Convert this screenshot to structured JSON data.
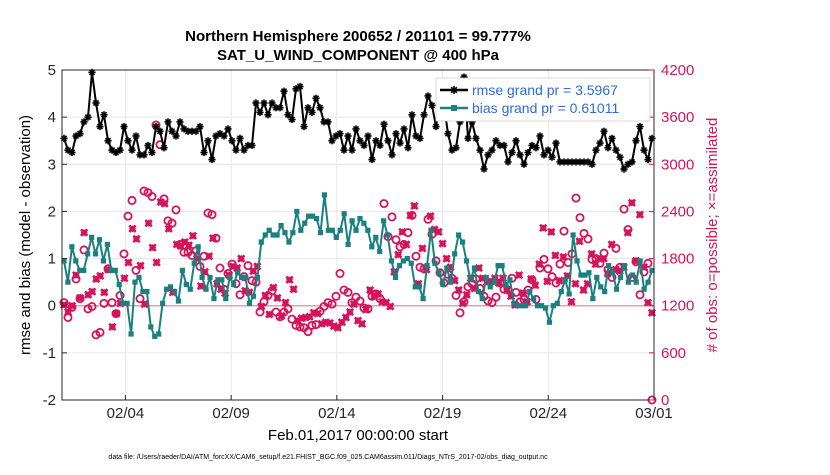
{
  "chart_data": {
    "type": "line",
    "title": "Northern Hemisphere 200652 / 201101 = 99.777%",
    "subtitle": "SAT_U_WIND_COMPONENT @ 400 hPa",
    "xlabel": "Feb.01,2017 00:00:00 start",
    "ylabel_left": "rmse and bias (model - observation)",
    "ylabel_right": "# of obs: o=possible; ×=assimilated",
    "footer": "data file: /Users/raeder/DAI/ATM_forcXX/CAM6_setup/f.e21.FHIST_BGC.f09_025.CAM6assim.011/Diags_NTrS_2017-02/obs_diag_output.nc",
    "x_start_date": "2017-02-01",
    "x_range_days": [
      0,
      28
    ],
    "x_tick_labels": [
      "02/04",
      "02/09",
      "02/14",
      "02/19",
      "02/24",
      "03/01"
    ],
    "ylim_left": [
      -2,
      5
    ],
    "y_ticks_left": [
      "-2",
      "-1",
      "0",
      "1",
      "2",
      "3",
      "4",
      "5"
    ],
    "ylim_right": [
      0,
      4200
    ],
    "y_ticks_right": [
      "0",
      "600",
      "1200",
      "1800",
      "2400",
      "3000",
      "3600",
      "4200"
    ],
    "grid": true,
    "legend_position": "top-right",
    "colors": {
      "rmse": "#000000",
      "bias": "#1a8080",
      "obs": "#d4145a",
      "legend_text": "#2f6bd8",
      "zero_line": "#e0a0b0",
      "grid": "#e6e6e6"
    },
    "series": [
      {
        "name": "rmse grand pr = 3.5967",
        "axis": "left",
        "marker": "star",
        "values": [
          3.55,
          3.3,
          3.25,
          3.6,
          3.65,
          3.9,
          4.0,
          4.95,
          4.3,
          3.8,
          4.05,
          3.5,
          3.3,
          3.25,
          3.3,
          3.8,
          3.5,
          3.3,
          3.6,
          3.2,
          3.2,
          3.4,
          3.25,
          3.8,
          3.7,
          3.35,
          3.9,
          3.7,
          3.6,
          3.9,
          3.75,
          3.7,
          3.7,
          3.7,
          3.8,
          3.25,
          3.5,
          3.1,
          3.6,
          3.65,
          3.6,
          3.75,
          3.5,
          3.3,
          3.55,
          3.3,
          3.4,
          3.4,
          4.3,
          4.1,
          4.3,
          4.05,
          4.3,
          4.2,
          4.2,
          4.55,
          4.05,
          3.95,
          4.6,
          4.65,
          3.8,
          4.2,
          4.1,
          4.4,
          4.2,
          3.9,
          3.9,
          3.5,
          3.6,
          3.65,
          3.3,
          3.6,
          3.3,
          3.75,
          3.5,
          3.4,
          3.6,
          3.1,
          3.5,
          3.4,
          3.85,
          3.5,
          3.2,
          3.65,
          3.45,
          3.75,
          3.35,
          4.05,
          3.6,
          3.55,
          4.05,
          4.45,
          4.25,
          3.8,
          4.4,
          4.25,
          3.65,
          3.3,
          3.35,
          3.9,
          4.85,
          3.55,
          3.9,
          3.55,
          3.3,
          2.9,
          3.2,
          3.3,
          3.5,
          3.4,
          3.4,
          3.05,
          3.25,
          3.5,
          3.2,
          3.0,
          3.25,
          3.4,
          3.35,
          3.6,
          3.2,
          3.3,
          3.15,
          3.45,
          3.05,
          3.05,
          3.05,
          3.05,
          3.05,
          3.05,
          3.05,
          3.05,
          3.0,
          3.3,
          3.45,
          3.7,
          3.35,
          3.55,
          3.3,
          3.15,
          2.9,
          3.0,
          3.05,
          3.5,
          3.8,
          3.3,
          3.1,
          3.55
        ]
      },
      {
        "name": "bias grand pr = 0.61011",
        "axis": "left",
        "marker": "square",
        "values": [
          0.95,
          0.5,
          1.25,
          0.95,
          0.75,
          0.75,
          1.1,
          1.45,
          1.1,
          1.4,
          0.95,
          1.3,
          0.75,
          0.75,
          0.45,
          0.05,
          0.05,
          -0.6,
          0.5,
          0.6,
          0.3,
          0.3,
          -0.45,
          -0.65,
          -0.6,
          0.05,
          0.35,
          0.4,
          0.3,
          0.1,
          0.75,
          0.45,
          0.35,
          0.9,
          1.25,
          0.6,
          0.35,
          0.6,
          0.15,
          0.55,
          0.55,
          0.15,
          0.6,
          0.45,
          0.7,
          0.6,
          0.6,
          0.05,
          0.2,
          0.6,
          1.35,
          1.5,
          1.6,
          1.5,
          1.5,
          1.7,
          1.55,
          1.35,
          1.55,
          2.0,
          1.6,
          1.75,
          1.9,
          1.9,
          1.85,
          1.55,
          2.35,
          1.6,
          1.6,
          1.45,
          1.6,
          1.95,
          1.3,
          1.8,
          1.6,
          1.85,
          1.75,
          1.6,
          1.25,
          1.45,
          1.15,
          1.8,
          1.5,
          0.95,
          0.6,
          0.85,
          0.95,
          1.0,
          0.9,
          0.4,
          0.4,
          0.15,
          0.85,
          1.6,
          0.9,
          0.7,
          0.45,
          0.8,
          0.5,
          1.1,
          1.5,
          1.35,
          0.95,
          0.55,
          0.8,
          0.3,
          0.15,
          0.6,
          0.4,
          0.5,
          0.85,
          0.85,
          0.45,
          0.55,
          0.05,
          0.0,
          0.0,
          0.0,
          0.3,
          0.15,
          0.0,
          0.0,
          -0.05,
          -0.35,
          0.0,
          0.05,
          0.3,
          0.55,
          0.25,
          1.5,
          0.95,
          0.65,
          0.65,
          0.7,
          0.15,
          0.6,
          0.4,
          0.3,
          0.85,
          0.7,
          0.35,
          0.6,
          0.85,
          0.5,
          0.65,
          0.5,
          0.95,
          0.35,
          0.5,
          0.75
        ]
      },
      {
        "name": "assimilated obs",
        "axis": "right",
        "marker": "x",
        "values": [
          1210,
          1120,
          1200,
          1590,
          1300,
          2130,
          1340,
          1380,
          1540,
          1580,
          1370,
          1660,
          930,
          1100,
          1230,
          1550,
          1750,
          2180,
          2050,
          1710,
          1220,
          2250,
          1940,
          1750,
          2520,
          2500,
          2180,
          1370,
          1980,
          1960,
          2010,
          1970,
          2090,
          1800,
          1450,
          1630,
          1830,
          2060,
          1480,
          1410,
          1360,
          1590,
          1700,
          1680,
          1800,
          1390,
          1370,
          1640,
          1700,
          1190,
          1330,
          1090,
          1430,
          1300,
          1070,
          1240,
          1530,
          1410,
          1010,
          1040,
          1050,
          1060,
          1110,
          1100,
          970,
          990,
          980,
          940,
          920,
          990,
          1050,
          1120,
          1220,
          1010,
          970,
          1150,
          1400,
          1320,
          1350,
          1250,
          1240,
          1190,
          1630,
          1850,
          2140,
          1980,
          2350,
          2470,
          1480,
          1930,
          1660,
          2340,
          2170,
          2140,
          1990,
          1800,
          1690,
          1520,
          1400,
          1230,
          1340,
          1550,
          1420,
          1680,
          1550,
          1500,
          1510,
          1550,
          1490,
          1550,
          1400,
          1320,
          1210,
          1590,
          1360,
          1250,
          1540,
          1460,
          1730,
          2190,
          1510,
          2140,
          1840,
          1520,
          1820,
          1580,
          1250,
          1480,
          2020,
          1400,
          1480,
          1860,
          1730,
          1800,
          1800,
          1610,
          1980,
          1660,
          1640,
          1690,
          2130,
          2510,
          1770,
          2360,
          1690,
          1240,
          1110
        ]
      },
      {
        "name": "possible obs",
        "axis": "right",
        "marker": "o",
        "values": [
          1240,
          1050,
          1180,
          1540,
          1290,
          1910,
          1160,
          1190,
          830,
          860,
          1230,
          1670,
          1240,
          1100,
          1330,
          1860,
          2340,
          2540,
          1650,
          1290,
          2660,
          2640,
          2590,
          3500,
          3250,
          2560,
          2280,
          2250,
          2420,
          1980,
          1880,
          1880,
          1840,
          1900,
          1700,
          1830,
          2380,
          2360,
          2060,
          1680,
          1410,
          1610,
          1730,
          1480,
          1340,
          1570,
          1710,
          1520,
          1500,
          1120,
          1250,
          1330,
          1390,
          1120,
          1060,
          1120,
          1160,
          1030,
          950,
          930,
          920,
          870,
          950,
          960,
          1130,
          1190,
          1240,
          1220,
          1320,
          1610,
          1400,
          1370,
          1240,
          1310,
          1260,
          1170,
          1160,
          1320,
          1350,
          1290,
          2500,
          2080,
          2330,
          2040,
          1950,
          1980,
          2130,
          2350,
          1830,
          1690,
          1670,
          2300,
          2110,
          1770,
          1620,
          1490,
          1600,
          1550,
          1330,
          1110,
          1250,
          1440,
          1480,
          1540,
          1420,
          1320,
          1260,
          1240,
          1310,
          1490,
          1410,
          1400,
          1550,
          1370,
          1250,
          1280,
          1400,
          1530,
          1280,
          1680,
          1790,
          1670,
          1570,
          1490,
          1730,
          2150,
          1750,
          1860,
          2570,
          2320,
          2120,
          2050,
          1790,
          1800,
          1740,
          1870,
          1660,
          1560,
          1930,
          1690,
          2430,
          2170,
          1560,
          1760,
          1340,
          1630,
          1740,
          0
        ]
      }
    ]
  }
}
